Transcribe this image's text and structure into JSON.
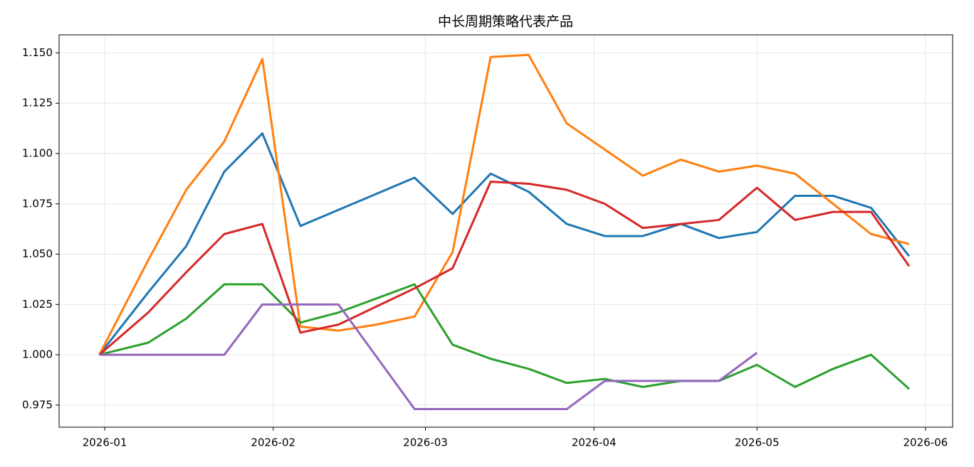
{
  "chart_data": {
    "type": "line",
    "title": "中长周期策略代表产品",
    "x": [
      -1,
      8,
      15,
      22,
      29,
      36,
      43,
      50,
      57,
      64,
      71,
      78,
      85,
      92,
      99,
      106,
      113,
      120,
      127,
      134,
      141,
      148
    ],
    "xlim": [
      -8.4,
      156
    ],
    "xticks": [
      {
        "value": 0,
        "label": "2026-01"
      },
      {
        "value": 31,
        "label": "2026-02"
      },
      {
        "value": 59,
        "label": "2026-03"
      },
      {
        "value": 90,
        "label": "2026-04"
      },
      {
        "value": 120,
        "label": "2026-05"
      },
      {
        "value": 151,
        "label": "2026-06"
      }
    ],
    "ylim": [
      0.964,
      1.159
    ],
    "yticks": [
      0.975,
      {
        "value": 1,
        "label": "1.000"
      },
      1.025,
      {
        "value": 1.05,
        "label": "1.050"
      },
      1.075,
      {
        "value": 1.1,
        "label": "1.100"
      },
      1.125,
      {
        "value": 1.15,
        "label": "1.150"
      }
    ],
    "grid": true,
    "series": [
      {
        "color": "#1f77b4",
        "values": [
          1.0,
          1.031,
          1.054,
          1.091,
          1.11,
          1.064,
          1.072,
          1.08,
          1.088,
          1.07,
          1.09,
          1.081,
          1.065,
          1.059,
          1.059,
          1.065,
          1.058,
          1.061,
          1.079,
          1.079,
          1.073,
          1.049
        ]
      },
      {
        "color": "#ff7f0e",
        "values": [
          1.0,
          1.047,
          1.082,
          1.106,
          1.147,
          1.014,
          1.012,
          1.015,
          1.019,
          1.051,
          1.148,
          1.149,
          1.115,
          1.102,
          1.089,
          1.097,
          1.091,
          1.094,
          1.09,
          1.075,
          1.06,
          1.055
        ]
      },
      {
        "color": "#2ca02c",
        "values": [
          1.0,
          1.006,
          1.018,
          1.035,
          1.035,
          1.016,
          1.021,
          1.028,
          1.035,
          1.005,
          0.998,
          0.993,
          0.986,
          0.988,
          0.984,
          0.987,
          0.987,
          0.995,
          0.984,
          0.993,
          1.0,
          0.983
        ]
      },
      {
        "color": "#d62728",
        "values": [
          1.0,
          1.021,
          1.041,
          1.06,
          1.065,
          1.011,
          1.015,
          1.024,
          1.033,
          1.043,
          1.086,
          1.085,
          1.082,
          1.075,
          1.063,
          1.065,
          1.067,
          1.083,
          1.067,
          1.071,
          1.071,
          1.044
        ]
      },
      {
        "color": "#9467bd",
        "values": [
          1.0,
          1.0,
          1.0,
          1.0,
          1.025,
          1.025,
          1.025,
          0.999,
          0.973,
          0.973,
          0.973,
          0.973,
          0.973,
          0.987,
          0.987,
          0.987,
          0.987,
          1.001,
          null,
          null,
          null,
          null
        ]
      }
    ]
  }
}
